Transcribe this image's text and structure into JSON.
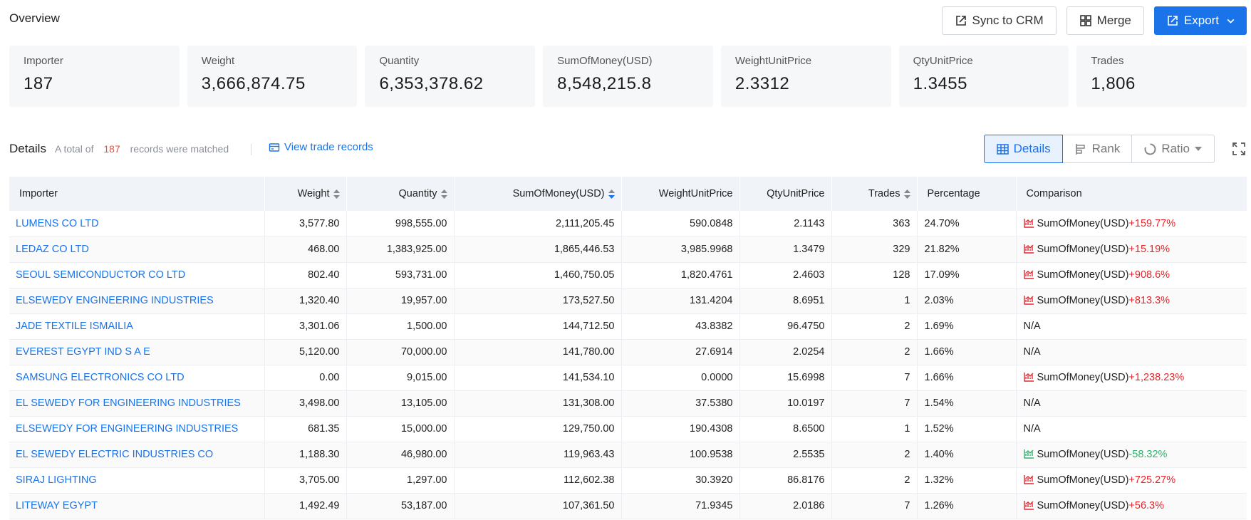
{
  "overview": {
    "title": "Overview",
    "actions": {
      "sync": "Sync to CRM",
      "merge": "Merge",
      "export": "Export"
    },
    "kpis": [
      {
        "label": "Importer",
        "value": "187"
      },
      {
        "label": "Weight",
        "value": "3,666,874.75"
      },
      {
        "label": "Quantity",
        "value": "6,353,378.62"
      },
      {
        "label": "SumOfMoney(USD)",
        "value": "8,548,215.8"
      },
      {
        "label": "WeightUnitPrice",
        "value": "2.3312"
      },
      {
        "label": "QtyUnitPrice",
        "value": "1.3455"
      },
      {
        "label": "Trades",
        "value": "1,806"
      }
    ]
  },
  "details": {
    "title": "Details",
    "desc_prefix": "A total of",
    "count": "187",
    "desc_suffix": "records were matched",
    "view_link": "View trade records",
    "view_modes": {
      "details": "Details",
      "rank": "Rank",
      "ratio": "Ratio"
    }
  },
  "table": {
    "headers": {
      "importer": "Importer",
      "weight": "Weight",
      "quantity": "Quantity",
      "sum": "SumOfMoney(USD)",
      "wup": "WeightUnitPrice",
      "qup": "QtyUnitPrice",
      "trades": "Trades",
      "pct": "Percentage",
      "cmp": "Comparison"
    },
    "rows": [
      {
        "importer": "LUMENS CO LTD",
        "weight": "3,577.80",
        "quantity": "998,555.00",
        "sum": "2,111,205.45",
        "wup": "590.0848",
        "qup": "2.1143",
        "trades": "363",
        "pct": "24.70%",
        "cmp_metric": "SumOfMoney(USD)",
        "cmp_change": "+159.77%",
        "cmp_dir": "up"
      },
      {
        "importer": "LEDAZ CO LTD",
        "weight": "468.00",
        "quantity": "1,383,925.00",
        "sum": "1,865,446.53",
        "wup": "3,985.9968",
        "qup": "1.3479",
        "trades": "329",
        "pct": "21.82%",
        "cmp_metric": "SumOfMoney(USD)",
        "cmp_change": "+15.19%",
        "cmp_dir": "up"
      },
      {
        "importer": "SEOUL SEMICONDUCTOR CO LTD",
        "weight": "802.40",
        "quantity": "593,731.00",
        "sum": "1,460,750.05",
        "wup": "1,820.4761",
        "qup": "2.4603",
        "trades": "128",
        "pct": "17.09%",
        "cmp_metric": "SumOfMoney(USD)",
        "cmp_change": "+908.6%",
        "cmp_dir": "up"
      },
      {
        "importer": "ELSEWEDY ENGINEERING INDUSTRIES",
        "weight": "1,320.40",
        "quantity": "19,957.00",
        "sum": "173,527.50",
        "wup": "131.4204",
        "qup": "8.6951",
        "trades": "1",
        "pct": "2.03%",
        "cmp_metric": "SumOfMoney(USD)",
        "cmp_change": "+813.3%",
        "cmp_dir": "up"
      },
      {
        "importer": "JADE TEXTILE ISMAILIA",
        "weight": "3,301.06",
        "quantity": "1,500.00",
        "sum": "144,712.50",
        "wup": "43.8382",
        "qup": "96.4750",
        "trades": "2",
        "pct": "1.69%",
        "cmp_metric": "N/A",
        "cmp_change": "",
        "cmp_dir": "none"
      },
      {
        "importer": "EVEREST EGYPT IND S A E",
        "weight": "5,120.00",
        "quantity": "70,000.00",
        "sum": "141,780.00",
        "wup": "27.6914",
        "qup": "2.0254",
        "trades": "2",
        "pct": "1.66%",
        "cmp_metric": "N/A",
        "cmp_change": "",
        "cmp_dir": "none"
      },
      {
        "importer": "SAMSUNG ELECTRONICS CO LTD",
        "weight": "0.00",
        "quantity": "9,015.00",
        "sum": "141,534.10",
        "wup": "0.0000",
        "qup": "15.6998",
        "trades": "7",
        "pct": "1.66%",
        "cmp_metric": "SumOfMoney(USD)",
        "cmp_change": "+1,238.23%",
        "cmp_dir": "up"
      },
      {
        "importer": "EL SEWEDY FOR ENGINEERING INDUSTRIES",
        "weight": "3,498.00",
        "quantity": "13,105.00",
        "sum": "131,308.00",
        "wup": "37.5380",
        "qup": "10.0197",
        "trades": "7",
        "pct": "1.54%",
        "cmp_metric": "N/A",
        "cmp_change": "",
        "cmp_dir": "none"
      },
      {
        "importer": "ELSEWEDY FOR ENGINEERING INDUSTRIES",
        "weight": "681.35",
        "quantity": "15,000.00",
        "sum": "129,750.00",
        "wup": "190.4308",
        "qup": "8.6500",
        "trades": "1",
        "pct": "1.52%",
        "cmp_metric": "N/A",
        "cmp_change": "",
        "cmp_dir": "none"
      },
      {
        "importer": "EL SEWEDY ELECTRIC INDUSTRIES CO",
        "weight": "1,188.30",
        "quantity": "46,980.00",
        "sum": "119,963.43",
        "wup": "100.9538",
        "qup": "2.5535",
        "trades": "2",
        "pct": "1.40%",
        "cmp_metric": "SumOfMoney(USD)",
        "cmp_change": "-58.32%",
        "cmp_dir": "down"
      },
      {
        "importer": "SIRAJ LIGHTING",
        "weight": "3,705.00",
        "quantity": "1,297.00",
        "sum": "112,602.38",
        "wup": "30.3920",
        "qup": "86.8176",
        "trades": "2",
        "pct": "1.32%",
        "cmp_metric": "SumOfMoney(USD)",
        "cmp_change": "+725.27%",
        "cmp_dir": "up"
      },
      {
        "importer": "LITEWAY EGYPT",
        "weight": "1,492.49",
        "quantity": "53,187.00",
        "sum": "107,361.50",
        "wup": "71.9345",
        "qup": "2.0186",
        "trades": "7",
        "pct": "1.26%",
        "cmp_metric": "SumOfMoney(USD)",
        "cmp_change": "+56.3%",
        "cmp_dir": "up"
      }
    ]
  },
  "colors": {
    "accent": "#1a73e8",
    "up": "#e5252a",
    "down": "#2db36b",
    "count": "#e8503a"
  },
  "icons": {
    "sync": "external-sync-icon",
    "merge": "merge-grid-icon",
    "export": "export-icon",
    "details": "table-icon",
    "rank": "rank-bars-icon",
    "ratio": "ratio-ring-icon",
    "fullscreen": "fullscreen-icon",
    "trend": "trend-chart-icon"
  }
}
